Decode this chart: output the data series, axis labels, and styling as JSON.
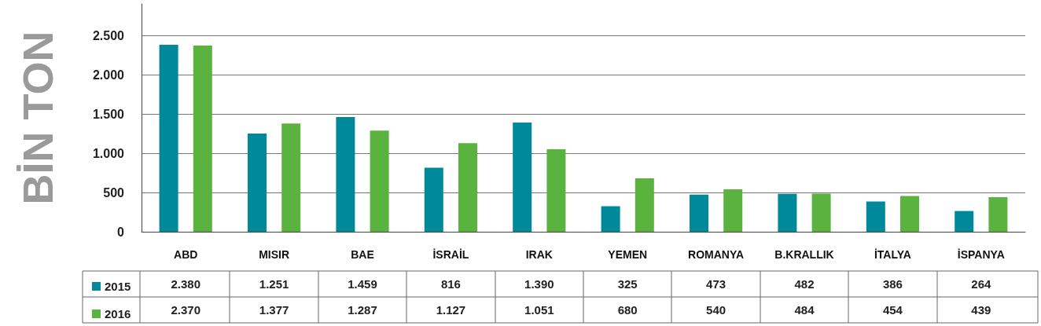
{
  "chart_data": {
    "type": "bar",
    "ylabel": "BİN TON",
    "categories": [
      "ABD",
      "MISIR",
      "BAE",
      "İSRAİL",
      "IRAK",
      "YEMEN",
      "ROMANYA",
      "B.KRALLIK",
      "İTALYA",
      "İSPANYA"
    ],
    "series": [
      {
        "name": "2015",
        "color": "#00899a",
        "values": [
          2380,
          1251,
          1459,
          816,
          1390,
          325,
          473,
          482,
          386,
          264
        ],
        "value_labels": [
          "2.380",
          "1.251",
          "1.459",
          "816",
          "1.390",
          "325",
          "473",
          "482",
          "386",
          "264"
        ]
      },
      {
        "name": "2016",
        "color": "#5ab33e",
        "values": [
          2370,
          1377,
          1287,
          1127,
          1051,
          680,
          540,
          484,
          454,
          439
        ],
        "value_labels": [
          "2.370",
          "1.377",
          "1.287",
          "1.127",
          "1.051",
          "680",
          "540",
          "484",
          "454",
          "439"
        ]
      }
    ],
    "ylim": [
      0,
      2900
    ],
    "yticks": [
      0,
      {
        "value": 500,
        "label": "500"
      },
      {
        "value": 1000,
        "label": "1.000"
      },
      {
        "value": 1500,
        "label": "1.500"
      },
      {
        "value": 2000,
        "label": "2.000"
      },
      {
        "value": 2500,
        "label": "2.500"
      }
    ],
    "grid": "y",
    "legend": "bottom left"
  }
}
